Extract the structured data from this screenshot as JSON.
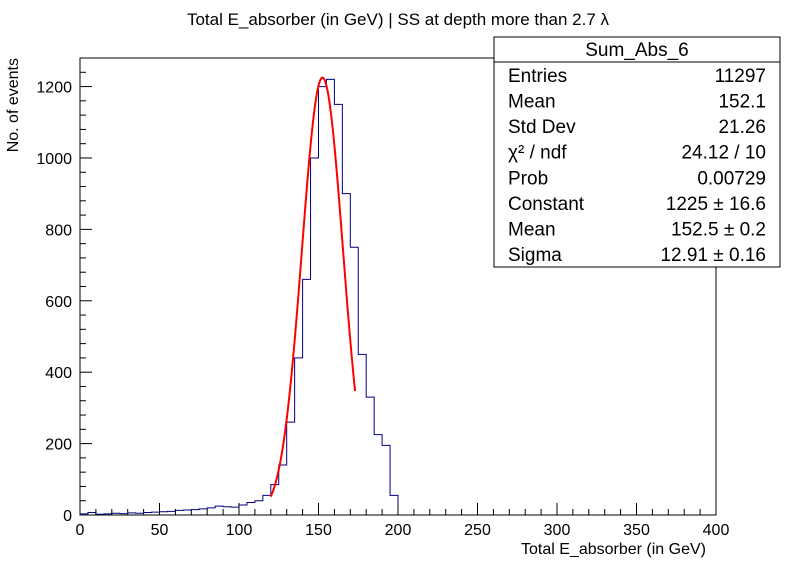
{
  "chart_data": {
    "type": "histogram",
    "title": "Total E_absorber (in GeV) | SS at depth more than 2.7 λ",
    "xlabel": "Total E_absorber (in GeV)",
    "ylabel": "No. of events",
    "xlim": [
      0,
      400
    ],
    "ylim": [
      0,
      1280
    ],
    "x_ticks": [
      0,
      50,
      100,
      150,
      200,
      250,
      300,
      350,
      400
    ],
    "y_ticks": [
      0,
      200,
      400,
      600,
      800,
      1000,
      1200
    ],
    "x_tick_labels": [
      "0",
      "50",
      "100",
      "150",
      "200",
      "250",
      "300",
      "350",
      "400"
    ],
    "y_tick_labels": [
      "0",
      "200",
      "400",
      "600",
      "800",
      "1000",
      "1200"
    ],
    "bin_width": 5,
    "bins_x_low": [
      0,
      5,
      10,
      15,
      20,
      25,
      30,
      35,
      40,
      45,
      50,
      55,
      60,
      65,
      70,
      75,
      80,
      85,
      90,
      95,
      100,
      105,
      110,
      115,
      120,
      125,
      130,
      135,
      140,
      145,
      150,
      155,
      160,
      165,
      170,
      175,
      180,
      185,
      190,
      195
    ],
    "counts": [
      3,
      7,
      2,
      3,
      5,
      4,
      6,
      5,
      7,
      8,
      9,
      10,
      13,
      14,
      15,
      17,
      20,
      25,
      23,
      22,
      28,
      35,
      40,
      55,
      85,
      140,
      260,
      440,
      660,
      1000,
      1200,
      1220,
      1150,
      900,
      750,
      450,
      330,
      225,
      195,
      55
    ],
    "histogram_color": "#000080",
    "fit": {
      "function": "gaus",
      "color": "#ff0000",
      "range": [
        120,
        173
      ],
      "constant": 1225,
      "mean": 152.5,
      "sigma": 12.91
    },
    "stats_box": {
      "name": "Sum_Abs_6",
      "rows": [
        {
          "label": "Entries",
          "value": "11297"
        },
        {
          "label": "Mean",
          "value": "152.1"
        },
        {
          "label": "Std Dev",
          "value": "21.26"
        },
        {
          "label": "χ² / ndf",
          "value": "24.12 / 10"
        },
        {
          "label": "Prob",
          "value": "0.00729"
        },
        {
          "label": "Constant",
          "value": "1225 ± 16.6"
        },
        {
          "label": "Mean",
          "value": "152.5 ± 0.2"
        },
        {
          "label": "Sigma",
          "value": "12.91 ± 0.16"
        }
      ],
      "placement": "top-right"
    }
  }
}
